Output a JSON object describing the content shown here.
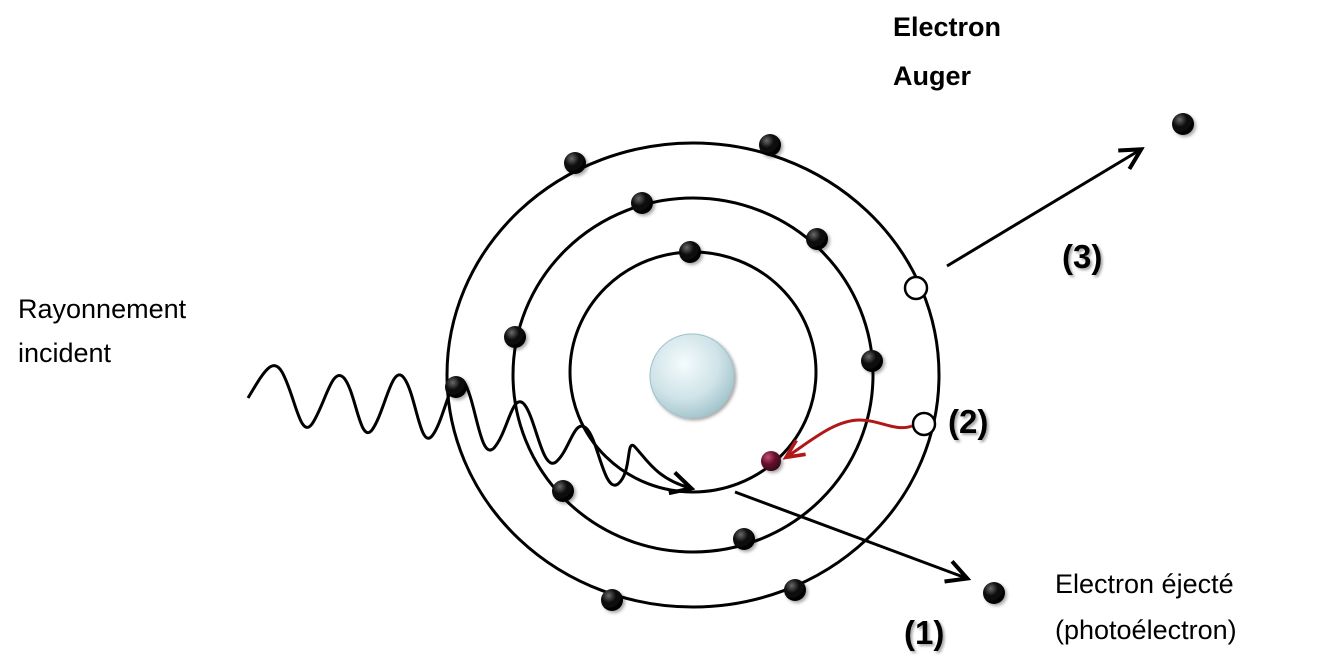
{
  "labels": {
    "incident_line1": "Rayonnement",
    "incident_line2": "incident",
    "auger_line1": "Electron",
    "auger_line2": "Auger",
    "ejected_line1": "Electron éjecté",
    "ejected_line2": "(photoélectron)",
    "step1": "(1)",
    "step2": "(2)",
    "step3": "(3)"
  },
  "icons": {
    "nucleus": "nucleus-sphere-icon",
    "electron": "electron-dot-icon",
    "vacancy": "vacancy-circle-icon",
    "wave": "incident-wave-icon"
  },
  "colors": {
    "nucleus": "#cfe3e8",
    "electron": "#000000",
    "excited_electron": "#6b1030",
    "transition_arrow": "#b01818",
    "lines": "#000000"
  }
}
